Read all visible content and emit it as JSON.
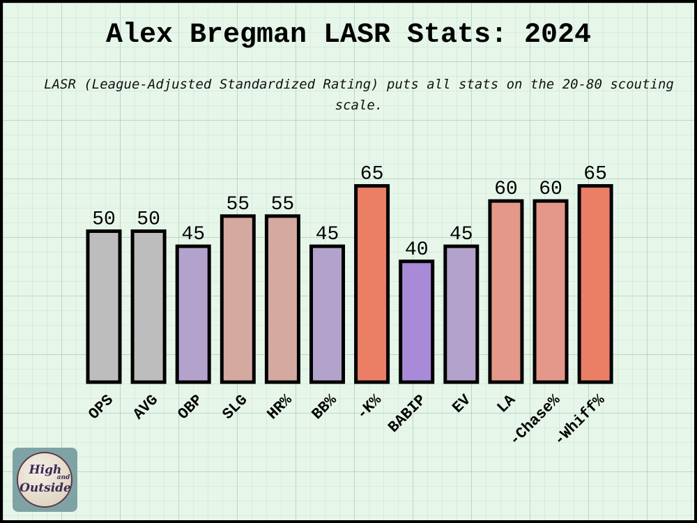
{
  "chart_data": {
    "type": "bar",
    "title": "Alex Bregman LASR Stats: 2024",
    "subtitle": "LASR (League-Adjusted Standardized Rating) puts all stats on the 20-80 scouting scale.",
    "xlabel": "",
    "ylabel": "",
    "ylim": [
      0,
      75
    ],
    "grid": true,
    "categories": [
      "OPS",
      "AVG",
      "OBP",
      "SLG",
      "HR%",
      "BB%",
      "-K%",
      "BABIP",
      "EV",
      "LA",
      "-Chase%",
      "-Whiff%"
    ],
    "values": [
      50,
      50,
      45,
      55,
      55,
      45,
      65,
      40,
      45,
      60,
      60,
      65
    ],
    "colors": [
      "#bdbdbd",
      "#bdbdbd",
      "#b3a2cb",
      "#d4a9a0",
      "#d4a9a0",
      "#b3a2cb",
      "#ea7f66",
      "#a88ad9",
      "#b3a2cb",
      "#e3988a",
      "#e3988a",
      "#ea7f66"
    ]
  },
  "logo": {
    "text_line1": "High",
    "text_small": "and",
    "text_line2": "Outside"
  }
}
